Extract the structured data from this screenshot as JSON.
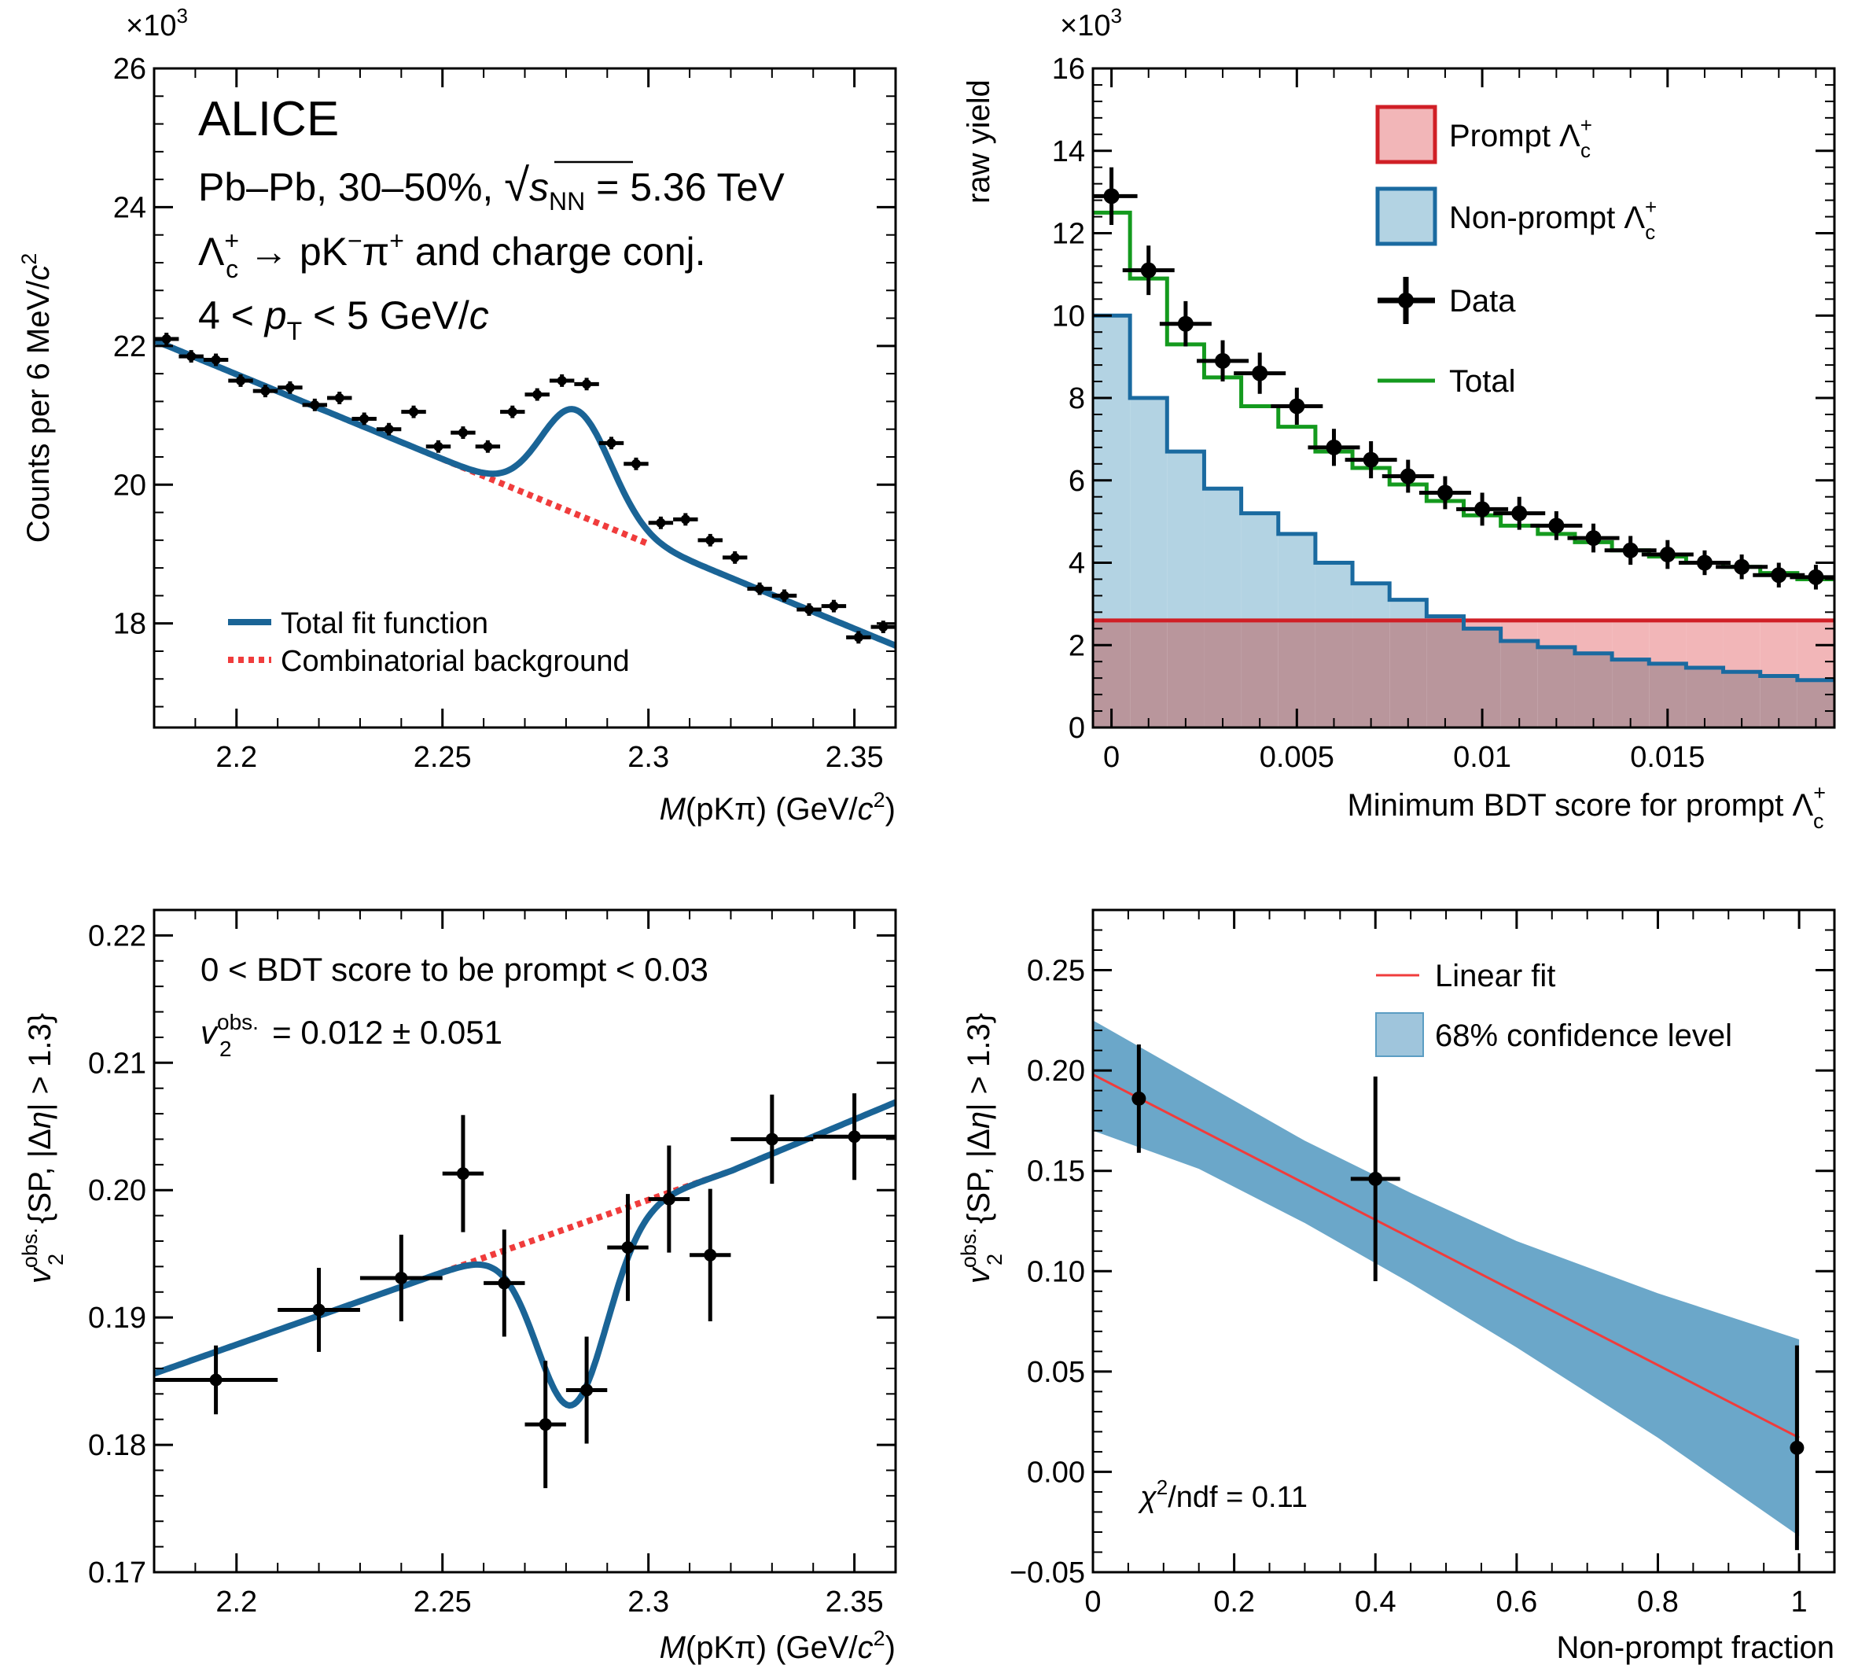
{
  "chart_data": [
    {
      "id": "mass",
      "type": "scatter",
      "text": {
        "experiment": "ALICE",
        "system_prefix": "Pb–Pb, 30–50%, ",
        "sqrt": "√",
        "s": "s",
        "nn": "NN",
        "energy": " = 5.36 TeV",
        "lambda": "Λ",
        "sub_c": "c",
        "sup_plus": "+",
        "decay_mid": " → pK",
        "sup_minus": "−",
        "pi": "π",
        "decay_tail": " and charge conj.",
        "pt_a": "4 < ",
        "pt_p": "p",
        "pt_t": "T",
        "pt_b": " < 5 GeV/",
        "pt_c": "c"
      },
      "ylabel": {
        "a": "Counts per 6 MeV/",
        "c": "c",
        "two": "2"
      },
      "xlabel": {
        "m": "M",
        "rest": "(pKπ) (GeV/",
        "c": "c",
        "two": "2",
        "close": ")"
      },
      "y_exponent": {
        "times": "×10",
        "exp": "3"
      },
      "xlim": [
        2.18,
        2.36
      ],
      "ylim": [
        16.5,
        26
      ],
      "xticks": [
        {
          "v": 2.2,
          "label": "2.2"
        },
        {
          "v": 2.25,
          "label": "2.25"
        },
        {
          "v": 2.3,
          "label": "2.3"
        },
        {
          "v": 2.35,
          "label": "2.35"
        }
      ],
      "yticks": [
        {
          "v": 18,
          "label": "18"
        },
        {
          "v": 20,
          "label": "20"
        },
        {
          "v": 22,
          "label": "22"
        },
        {
          "v": 24,
          "label": "24"
        },
        {
          "v": 26,
          "label": "26"
        }
      ],
      "x_bin_half_width": 0.003,
      "points": [
        {
          "x": 2.183,
          "y": 22.1,
          "e": 0.09
        },
        {
          "x": 2.189,
          "y": 21.85,
          "e": 0.09
        },
        {
          "x": 2.195,
          "y": 21.8,
          "e": 0.09
        },
        {
          "x": 2.201,
          "y": 21.5,
          "e": 0.09
        },
        {
          "x": 2.207,
          "y": 21.35,
          "e": 0.09
        },
        {
          "x": 2.213,
          "y": 21.4,
          "e": 0.09
        },
        {
          "x": 2.219,
          "y": 21.15,
          "e": 0.09
        },
        {
          "x": 2.225,
          "y": 21.25,
          "e": 0.09
        },
        {
          "x": 2.231,
          "y": 20.95,
          "e": 0.09
        },
        {
          "x": 2.237,
          "y": 20.8,
          "e": 0.09
        },
        {
          "x": 2.243,
          "y": 21.05,
          "e": 0.09
        },
        {
          "x": 2.249,
          "y": 20.55,
          "e": 0.09
        },
        {
          "x": 2.255,
          "y": 20.75,
          "e": 0.09
        },
        {
          "x": 2.261,
          "y": 20.55,
          "e": 0.09
        },
        {
          "x": 2.267,
          "y": 21.05,
          "e": 0.09
        },
        {
          "x": 2.273,
          "y": 21.3,
          "e": 0.09
        },
        {
          "x": 2.279,
          "y": 21.5,
          "e": 0.09
        },
        {
          "x": 2.285,
          "y": 21.45,
          "e": 0.09
        },
        {
          "x": 2.291,
          "y": 20.6,
          "e": 0.09
        },
        {
          "x": 2.297,
          "y": 20.3,
          "e": 0.09
        },
        {
          "x": 2.303,
          "y": 19.45,
          "e": 0.09
        },
        {
          "x": 2.309,
          "y": 19.5,
          "e": 0.09
        },
        {
          "x": 2.315,
          "y": 19.2,
          "e": 0.09
        },
        {
          "x": 2.321,
          "y": 18.95,
          "e": 0.09
        },
        {
          "x": 2.327,
          "y": 18.5,
          "e": 0.09
        },
        {
          "x": 2.333,
          "y": 18.4,
          "e": 0.09
        },
        {
          "x": 2.339,
          "y": 18.2,
          "e": 0.09
        },
        {
          "x": 2.345,
          "y": 18.25,
          "e": 0.09
        },
        {
          "x": 2.351,
          "y": 17.8,
          "e": 0.09
        },
        {
          "x": 2.357,
          "y": 17.95,
          "e": 0.09
        }
      ],
      "total_fit": {
        "bkg": [
          [
            2.18,
            22.08
          ],
          [
            2.36,
            17.68
          ]
        ],
        "peak_mean": 2.2825,
        "peak_sigma": 0.0085,
        "peak_amp": 1.5
      },
      "background_range": [
        2.25,
        2.3
      ],
      "legend": [
        {
          "label": "Total fit function",
          "color": "#1a6496",
          "style": "solid"
        },
        {
          "label": "Combinatorial background",
          "color": "#f03c3c",
          "style": "dotted"
        }
      ]
    },
    {
      "id": "bdt",
      "type": "histogram",
      "ylabel": "raw yield",
      "xlabel": {
        "a": "Minimum BDT score for prompt ",
        "lambda": "Λ",
        "sub_c": "c",
        "sup_plus": "+"
      },
      "y_exponent": {
        "times": "×10",
        "exp": "3"
      },
      "xlim": [
        -0.0005,
        0.0195
      ],
      "ylim": [
        0,
        16
      ],
      "xticks": [
        {
          "v": 0,
          "label": "0"
        },
        {
          "v": 0.005,
          "label": "0.005"
        },
        {
          "v": 0.01,
          "label": "0.01"
        },
        {
          "v": 0.015,
          "label": "0.015"
        }
      ],
      "yticks": [
        {
          "v": 0,
          "label": "0"
        },
        {
          "v": 2,
          "label": "2"
        },
        {
          "v": 4,
          "label": "4"
        },
        {
          "v": 6,
          "label": "6"
        },
        {
          "v": 8,
          "label": "8"
        },
        {
          "v": 10,
          "label": "10"
        },
        {
          "v": 12,
          "label": "12"
        },
        {
          "v": 14,
          "label": "14"
        },
        {
          "v": 16,
          "label": "16"
        }
      ],
      "bin_edges": [
        -0.0005,
        0.0005,
        0.0015,
        0.0025,
        0.0035,
        0.0045,
        0.0055,
        0.0065,
        0.0075,
        0.0085,
        0.0095,
        0.0105,
        0.0115,
        0.0125,
        0.0135,
        0.0145,
        0.0155,
        0.0165,
        0.0175,
        0.0185,
        0.0195
      ],
      "prompt": [
        2.6,
        2.6,
        2.6,
        2.6,
        2.6,
        2.6,
        2.6,
        2.6,
        2.6,
        2.6,
        2.6,
        2.6,
        2.6,
        2.6,
        2.6,
        2.6,
        2.6,
        2.6,
        2.6,
        2.6
      ],
      "nonprompt": [
        10.0,
        8.0,
        6.7,
        5.8,
        5.2,
        4.7,
        4.0,
        3.5,
        3.1,
        2.7,
        2.4,
        2.1,
        1.95,
        1.8,
        1.65,
        1.55,
        1.45,
        1.35,
        1.25,
        1.15
      ],
      "total": [
        12.5,
        10.9,
        9.3,
        8.5,
        7.8,
        7.3,
        6.7,
        6.3,
        5.9,
        5.5,
        5.15,
        4.9,
        4.7,
        4.5,
        4.3,
        4.15,
        4.0,
        3.9,
        3.75,
        3.6
      ],
      "data": [
        {
          "x": 0.0,
          "y": 12.9,
          "e": 0.7
        },
        {
          "x": 0.001,
          "y": 11.1,
          "e": 0.6
        },
        {
          "x": 0.002,
          "y": 9.8,
          "e": 0.55
        },
        {
          "x": 0.003,
          "y": 8.9,
          "e": 0.5
        },
        {
          "x": 0.004,
          "y": 8.6,
          "e": 0.5
        },
        {
          "x": 0.005,
          "y": 7.8,
          "e": 0.45
        },
        {
          "x": 0.006,
          "y": 6.8,
          "e": 0.45
        },
        {
          "x": 0.007,
          "y": 6.5,
          "e": 0.45
        },
        {
          "x": 0.008,
          "y": 6.1,
          "e": 0.4
        },
        {
          "x": 0.009,
          "y": 5.7,
          "e": 0.4
        },
        {
          "x": 0.01,
          "y": 5.3,
          "e": 0.4
        },
        {
          "x": 0.011,
          "y": 5.2,
          "e": 0.4
        },
        {
          "x": 0.012,
          "y": 4.9,
          "e": 0.35
        },
        {
          "x": 0.013,
          "y": 4.6,
          "e": 0.35
        },
        {
          "x": 0.014,
          "y": 4.3,
          "e": 0.35
        },
        {
          "x": 0.015,
          "y": 4.2,
          "e": 0.35
        },
        {
          "x": 0.016,
          "y": 4.0,
          "e": 0.3
        },
        {
          "x": 0.017,
          "y": 3.9,
          "e": 0.3
        },
        {
          "x": 0.018,
          "y": 3.7,
          "e": 0.3
        },
        {
          "x": 0.019,
          "y": 3.65,
          "e": 0.3
        }
      ],
      "legend": [
        {
          "label": "Prompt ",
          "lambda": "Λ",
          "sub": "c",
          "sup": "+"
        },
        {
          "label": "Non-prompt ",
          "lambda": "Λ",
          "sub": "c",
          "sup": "+"
        },
        {
          "label": "Data"
        },
        {
          "label": "Total"
        }
      ],
      "colors": {
        "prompt_fill": "#f2b6b8",
        "prompt_line": "#d01f26",
        "nonprompt_fill": "#b3d3e3",
        "nonprompt_line": "#1a6aa0",
        "overlap_fill": "#b9969c",
        "overlap_line": "#3e5278",
        "total": "#149a1e"
      }
    },
    {
      "id": "v2mass",
      "type": "scatter",
      "annotation": "0 < BDT score to be prompt < 0.03",
      "v2_text": {
        "v": "v",
        "sub2": "2",
        "sup": "obs.",
        "rest": " = 0.012 ± 0.051"
      },
      "ylabel": {
        "v": "v",
        "sub2": "2",
        "sup": "obs.",
        "rest": "{SP, |Δ",
        "eta": "η",
        "rest2": "| > 1.3}"
      },
      "xlabel": {
        "m": "M",
        "rest": "(pKπ) (GeV/",
        "c": "c",
        "two": "2",
        "close": ")"
      },
      "xlim": [
        2.18,
        2.36
      ],
      "ylim": [
        0.17,
        0.222
      ],
      "xticks": [
        {
          "v": 2.2,
          "label": "2.2"
        },
        {
          "v": 2.25,
          "label": "2.25"
        },
        {
          "v": 2.3,
          "label": "2.3"
        },
        {
          "v": 2.35,
          "label": "2.35"
        }
      ],
      "yticks": [
        {
          "v": 0.17,
          "label": "0.17"
        },
        {
          "v": 0.18,
          "label": "0.18"
        },
        {
          "v": 0.19,
          "label": "0.19"
        },
        {
          "v": 0.2,
          "label": "0.20"
        },
        {
          "v": 0.21,
          "label": "0.21"
        },
        {
          "v": 0.22,
          "label": "0.22"
        }
      ],
      "points": [
        {
          "x": 2.195,
          "y": 0.1851,
          "ex": 0.015,
          "ey": 0.0027
        },
        {
          "x": 2.22,
          "y": 0.1906,
          "ex": 0.01,
          "ey": 0.0033
        },
        {
          "x": 2.24,
          "y": 0.1931,
          "ex": 0.01,
          "ey": 0.0034
        },
        {
          "x": 2.255,
          "y": 0.2013,
          "ex": 0.005,
          "ey": 0.0046
        },
        {
          "x": 2.265,
          "y": 0.1927,
          "ex": 0.005,
          "ey": 0.0042
        },
        {
          "x": 2.275,
          "y": 0.1816,
          "ex": 0.005,
          "ey": 0.005
        },
        {
          "x": 2.285,
          "y": 0.1843,
          "ex": 0.005,
          "ey": 0.0042
        },
        {
          "x": 2.295,
          "y": 0.1955,
          "ex": 0.005,
          "ey": 0.0042
        },
        {
          "x": 2.305,
          "y": 0.1993,
          "ex": 0.005,
          "ey": 0.0042
        },
        {
          "x": 2.315,
          "y": 0.1949,
          "ex": 0.005,
          "ey": 0.0052
        },
        {
          "x": 2.33,
          "y": 0.204,
          "ex": 0.01,
          "ey": 0.0035
        },
        {
          "x": 2.35,
          "y": 0.2042,
          "ex": 0.01,
          "ey": 0.0034
        }
      ],
      "fit_line": [
        [
          2.18,
          0.1856
        ],
        [
          2.32,
          0.2015
        ],
        [
          2.36,
          0.2069
        ]
      ],
      "fit_dip": {
        "mean": 2.2815,
        "sigma": 0.0085,
        "amp": -0.014
      },
      "background_range": [
        2.25,
        2.32
      ],
      "colors": {
        "fit": "#1a6496",
        "bkg": "#f03c3c"
      }
    },
    {
      "id": "v2frac",
      "type": "scatter",
      "chi2_text": {
        "chi": "χ",
        "sup2": "2",
        "rest": "/ndf = 0.11"
      },
      "ylabel": {
        "v": "v",
        "sub2": "2",
        "sup": "obs.",
        "rest": "{SP, |Δ",
        "eta": "η",
        "rest2": "| > 1.3}"
      },
      "xlabel": "Non-prompt fraction",
      "xlim": [
        0,
        1.05
      ],
      "ylim": [
        -0.05,
        0.28
      ],
      "xticks": [
        {
          "v": 0,
          "label": "0"
        },
        {
          "v": 0.2,
          "label": "0.2"
        },
        {
          "v": 0.4,
          "label": "0.4"
        },
        {
          "v": 0.6,
          "label": "0.6"
        },
        {
          "v": 0.8,
          "label": "0.8"
        },
        {
          "v": 1,
          "label": "1"
        }
      ],
      "yticks": [
        {
          "v": -0.05,
          "label": "−0.05"
        },
        {
          "v": 0,
          "label": "0.00"
        },
        {
          "v": 0.05,
          "label": "0.05"
        },
        {
          "v": 0.1,
          "label": "0.10"
        },
        {
          "v": 0.15,
          "label": "0.15"
        },
        {
          "v": 0.2,
          "label": "0.20"
        },
        {
          "v": 0.25,
          "label": "0.25"
        }
      ],
      "points": [
        {
          "x": 0.065,
          "y": 0.186,
          "ex": 0.0,
          "ey": 0.027
        },
        {
          "x": 0.4,
          "y": 0.146,
          "ex": 0.035,
          "ey": 0.051
        },
        {
          "x": 0.997,
          "y": 0.012,
          "ex": 0.0,
          "ey": 0.051
        }
      ],
      "fit": [
        [
          0,
          0.198
        ],
        [
          1,
          0.017
        ]
      ],
      "band_upper": [
        [
          0,
          0.225
        ],
        [
          0.15,
          0.195
        ],
        [
          0.3,
          0.165
        ],
        [
          0.45,
          0.139
        ],
        [
          0.6,
          0.115
        ],
        [
          0.8,
          0.089
        ],
        [
          1,
          0.066
        ]
      ],
      "band_lower": [
        [
          0,
          0.17
        ],
        [
          0.15,
          0.151
        ],
        [
          0.3,
          0.124
        ],
        [
          0.45,
          0.094
        ],
        [
          0.6,
          0.062
        ],
        [
          0.8,
          0.017
        ],
        [
          1,
          -0.032
        ]
      ],
      "legend": [
        {
          "label": "Linear fit",
          "color": "#f03c3c"
        },
        {
          "label": "68% confidence level",
          "color": "#5f9fc4"
        }
      ],
      "colors": {
        "band": "#5b9dc3",
        "fit": "#f03c3c"
      }
    }
  ]
}
